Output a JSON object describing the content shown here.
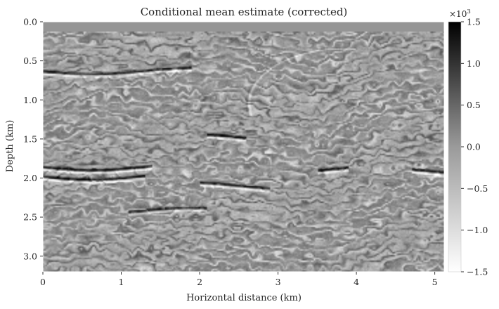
{
  "chart_data": {
    "type": "heatmap",
    "title": "Conditional mean estimate (corrected)",
    "xlabel": "Horizontal distance (km)",
    "ylabel": "Depth (km)",
    "xlim": [
      0,
      5.12
    ],
    "ylim": [
      3.2,
      0.0
    ],
    "x_ticks": [
      0,
      1,
      2,
      3,
      4,
      5
    ],
    "x_tick_labels": [
      "0",
      "1",
      "2",
      "3",
      "4",
      "5"
    ],
    "y_ticks": [
      0.0,
      0.5,
      1.0,
      1.5,
      2.0,
      2.5,
      3.0
    ],
    "y_tick_labels": [
      "0.0",
      "0.5",
      "1.0",
      "1.5",
      "2.0",
      "2.5",
      "3.0"
    ],
    "colormap": "grayscale (low = white, high = black)",
    "colorbar": {
      "range": [
        -1.5,
        1.5
      ],
      "ticks": [
        1.5,
        1.0,
        0.5,
        0.0,
        -0.5,
        -1.0,
        -1.5
      ],
      "tick_labels": [
        "1.5",
        "1.0",
        "0.5",
        "0.0",
        "−0.5",
        "−1.0",
        "−1.5"
      ],
      "multiplier_label": "×10",
      "multiplier_exponent": "3"
    },
    "grid": false,
    "water_layer_depth_km": 0.12,
    "key_reflectors": [
      {
        "depth_km": 0.63,
        "x_range_km": [
          0.0,
          1.9
        ],
        "amplitude": 1.2
      },
      {
        "depth_km": 1.86,
        "x_range_km": [
          0.0,
          1.4
        ],
        "amplitude": 1.5
      },
      {
        "depth_km": 1.98,
        "x_range_km": [
          0.0,
          1.3
        ],
        "amplitude": 1.4
      },
      {
        "depth_km": 1.48,
        "x_range_km": [
          2.1,
          2.6
        ],
        "amplitude": 1.5
      },
      {
        "depth_km": 1.88,
        "x_range_km": [
          3.5,
          3.9
        ],
        "amplitude": 1.3
      },
      {
        "depth_km": 2.1,
        "x_range_km": [
          2.0,
          2.9
        ],
        "amplitude": 1.3
      },
      {
        "depth_km": 1.92,
        "x_range_km": [
          4.7,
          5.12
        ],
        "amplitude": 1.2
      },
      {
        "depth_km": 2.42,
        "x_range_km": [
          1.1,
          2.1
        ],
        "amplitude": 1.1
      }
    ]
  }
}
